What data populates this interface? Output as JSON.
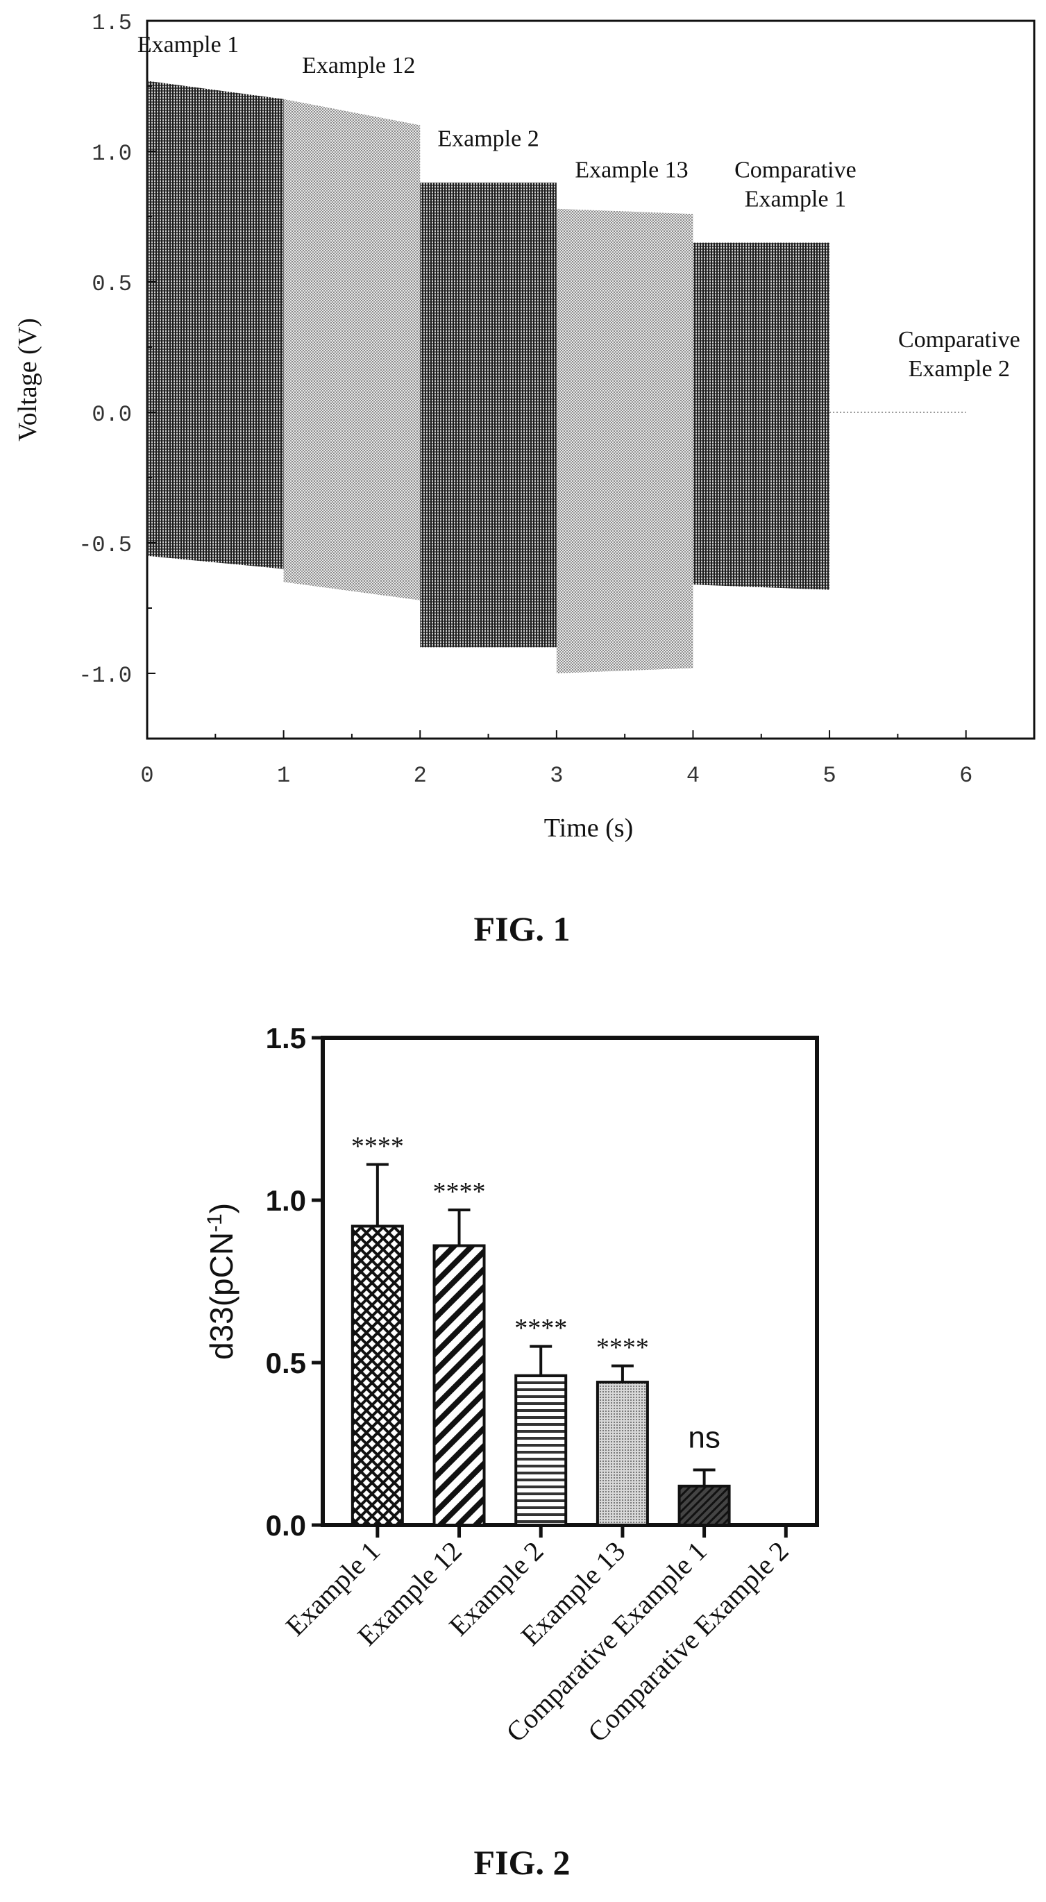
{
  "chart_data": [
    {
      "type": "line",
      "figure_label": "FIG. 1",
      "title": "",
      "xlabel": "Time (s)",
      "ylabel": "Voltage (V)",
      "xlim": [
        0,
        6.5
      ],
      "ylim": [
        -1.25,
        1.5
      ],
      "x_ticks": [
        "0",
        "1",
        "2",
        "3",
        "4",
        "5",
        "6"
      ],
      "y_ticks": [
        "-1.0",
        "-0.5",
        "0.0",
        "0.5",
        "1.0",
        "1.5"
      ],
      "grid": false,
      "legend": "none",
      "series": [
        {
          "name": "Example 1",
          "x_range": [
            0,
            1
          ],
          "upper": [
            1.27,
            1.2
          ],
          "lower": [
            -0.55,
            -0.6
          ],
          "color": "#3a3a3a"
        },
        {
          "name": "Example 12",
          "x_range": [
            1,
            2
          ],
          "upper": [
            1.2,
            1.1
          ],
          "lower": [
            -0.65,
            -0.72
          ],
          "color": "#aaaaaa"
        },
        {
          "name": "Example 2",
          "x_range": [
            2,
            3
          ],
          "upper": [
            0.88,
            0.88
          ],
          "lower": [
            -0.9,
            -0.9
          ],
          "color": "#4a4a4a"
        },
        {
          "name": "Example 13",
          "x_range": [
            3,
            4
          ],
          "upper": [
            0.78,
            0.76
          ],
          "lower": [
            -1.0,
            -0.98
          ],
          "color": "#b0b0b0"
        },
        {
          "name": "Comparative\nExample 1",
          "x_range": [
            4,
            5
          ],
          "upper": [
            0.65,
            0.65
          ],
          "lower": [
            -0.66,
            -0.68
          ],
          "color": "#555555"
        },
        {
          "name": "Comparative\nExample 2",
          "x_range": [
            5,
            6
          ],
          "upper": [
            0.0,
            0.0
          ],
          "lower": [
            0.0,
            0.0
          ],
          "color": "#999999"
        }
      ]
    },
    {
      "type": "bar",
      "figure_label": "FIG. 2",
      "title": "",
      "xlabel": "",
      "ylabel": "d33(pCN",
      "ylabel_sup": "-1",
      "ylabel_close": ")",
      "ylim": [
        0,
        1.5
      ],
      "y_ticks": [
        "0.0",
        "0.5",
        "1.0",
        "1.5"
      ],
      "categories": [
        "Example 1",
        "Example 12",
        "Example 2",
        "Example 13",
        "Comparative Example 1",
        "Comparative Example 2"
      ],
      "values": [
        0.92,
        0.86,
        0.46,
        0.44,
        0.12,
        0.0
      ],
      "errors": [
        0.19,
        0.11,
        0.09,
        0.05,
        0.05,
        0.0
      ],
      "significance": [
        "****",
        "****",
        "****",
        "****",
        "ns",
        ""
      ],
      "patterns": [
        "crosshatch",
        "diagonal",
        "horizontal",
        "dots",
        "diagonal-dense",
        "none"
      ],
      "grid": false,
      "legend": "none"
    }
  ]
}
